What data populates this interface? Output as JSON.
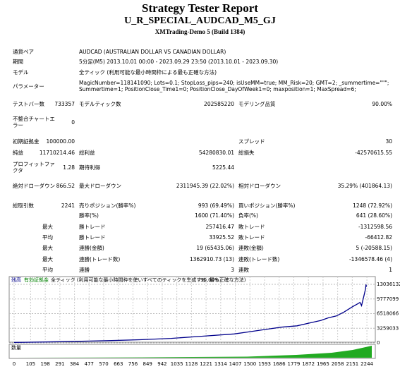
{
  "header": {
    "title": "Strategy Tester Report",
    "subtitle": "U_R_SPECIAL_AUDCAD_M5_GJ",
    "server": "XMTrading-Demo 5 (Build 1384)"
  },
  "table": {
    "rows": [
      [
        "通貨ペア",
        "AUDCAD (AUSTRALIAN DOLLAR VS CANADIAN DOLLAR)"
      ],
      [
        "期間",
        "5分足(M5) 2013.10.01 00:00 - 2023.09.29 23:50 (2013.10.01 - 2023.09.30)"
      ],
      [
        "モデル",
        "全ティック (利用可能な最小時間枠による最も正確な方法)"
      ],
      [
        "パラメーター",
        "MagicNumber=118141090; Lots=0.1; StopLoss_pips=240; isUseMM=true; MM_Risk=20; GMT=2; _summertime=\"\"\"; Summertime=1; PositionClose_Time1=0; PositionClose_DayOfWeek1=0; maxposition=1; MaxSpread=6;"
      ],
      [
        "テストバー数",
        "733357",
        "モデルティック数",
        "202585220",
        "モデリング品質",
        "90.00%"
      ],
      [
        "不整合チャートエラー",
        "0",
        null,
        null,
        null,
        null
      ],
      [
        "初期証拠金",
        "100000.00",
        null,
        null,
        "スプレッド",
        "30"
      ],
      [
        "純益",
        "11710214.46",
        "総利益",
        "54280830.01",
        "総損失",
        "-42570615.55"
      ],
      [
        "プロフィットファクタ",
        "1.28",
        "期待利得",
        "5225.44",
        null,
        null
      ],
      [
        "絶対ドローダウン",
        "866.52",
        "最大ドローダウン",
        "2311945.39 (22.02%)",
        "相対ドローダウン",
        "35.29% (401864.13)"
      ],
      [
        "総取引数",
        "2241",
        "売りポジション(勝率%)",
        "993 (69.49%)",
        "買いポジション(勝率%)",
        "1248 (72.92%)"
      ],
      [
        null,
        null,
        "勝率(%)",
        "1600 (71.40%)",
        "負率(%)",
        "641 (28.60%)"
      ],
      [
        null,
        "最大",
        "勝トレード",
        "257416.47",
        "敗トレード",
        "-1312598.56"
      ],
      [
        null,
        "平均",
        "勝トレード",
        "33925.52",
        "敗トレード",
        "-66412.82"
      ],
      [
        null,
        "最大",
        "連勝(金額)",
        "19 (65435.06)",
        "連敗(金額)",
        "5 (-20588.15)"
      ],
      [
        null,
        "最大",
        "連勝(トレード数)",
        "1362910.73 (13)",
        "連敗(トレード数)",
        "-1346578.46 (4)"
      ],
      [
        null,
        "平均",
        "連勝",
        "3",
        "連敗",
        "1"
      ]
    ]
  },
  "chart": {
    "type": "line",
    "legend": [
      "残高",
      "有効証拠金"
    ],
    "model": "全ティック (利用可能な最小時間枠を使いすべてのティックを生成する, 最も正確な方法)",
    "quality": "90.00%",
    "volume_label": "数量",
    "x": [
      0,
      200,
      400,
      600,
      800,
      1000,
      1200,
      1400,
      1500,
      1600,
      1700,
      1800,
      1900,
      1950,
      2000,
      2050,
      2100,
      2150,
      2200,
      2210,
      2225,
      2235,
      2238,
      2241
    ],
    "series": [
      {
        "name": "残高",
        "color": "#00008b",
        "values": [
          100000,
          200000,
          350000,
          500000,
          700000,
          1000000,
          1500000,
          2000000,
          2500000,
          3000000,
          3500000,
          3800000,
          4600000,
          5000000,
          5600000,
          6000000,
          6900000,
          8000000,
          9000000,
          8300000,
          10500000,
          12000000,
          13000000,
          12500000
        ]
      }
    ],
    "xlim": [
      0,
      2275
    ],
    "ylim": [
      0,
      14300000
    ],
    "xticks": [
      0,
      105,
      198,
      291,
      384,
      477,
      570,
      663,
      756,
      849,
      942,
      1035,
      1128,
      1221,
      1314,
      1407,
      1500,
      1593,
      1686,
      1779,
      1872,
      1965,
      2058,
      2151,
      2244
    ],
    "yticks": [
      0,
      3259033,
      6518066,
      9777099,
      13036132
    ]
  }
}
